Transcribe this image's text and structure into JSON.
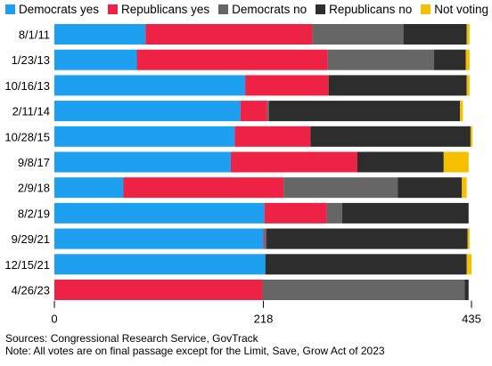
{
  "chart_data": {
    "type": "bar",
    "orientation": "horizontal",
    "stacked": true,
    "title": "",
    "xlabel": "",
    "ylabel": "",
    "xlim": [
      0,
      435
    ],
    "x_ticks": [
      0,
      218,
      435
    ],
    "grid": false,
    "legend_position": "top-left",
    "categories": [
      "8/1/11",
      "1/23/13",
      "10/16/13",
      "2/11/14",
      "10/28/15",
      "9/8/17",
      "2/9/18",
      "8/2/19",
      "9/29/21",
      "12/15/21",
      "4/26/23"
    ],
    "series": [
      {
        "name": "Democrats yes",
        "color": "#1ea0f0",
        "values": [
          95,
          86,
          199,
          194,
          188,
          184,
          72,
          219,
          218,
          220,
          0
        ]
      },
      {
        "name": "Republicans yes",
        "color": "#ee2244",
        "values": [
          174,
          199,
          87,
          28,
          79,
          132,
          167,
          65,
          1,
          0,
          217
        ]
      },
      {
        "name": "Democrats no",
        "color": "#666666",
        "values": [
          95,
          111,
          0,
          2,
          0,
          0,
          119,
          16,
          2,
          0,
          211
        ]
      },
      {
        "name": "Republicans no",
        "color": "#2d2d2d",
        "values": [
          66,
          33,
          144,
          199,
          167,
          90,
          67,
          132,
          210,
          210,
          4
        ]
      },
      {
        "name": "Not voting",
        "color": "#f5c000",
        "values": [
          3,
          4,
          3,
          3,
          2,
          26,
          5,
          0,
          2,
          5,
          0
        ]
      }
    ]
  },
  "notes": {
    "sources": "Sources: Congressional Research Service, GovTrack",
    "note": "Note: All votes are on final passage except for the Limit, Save, Grow Act of 2023"
  }
}
